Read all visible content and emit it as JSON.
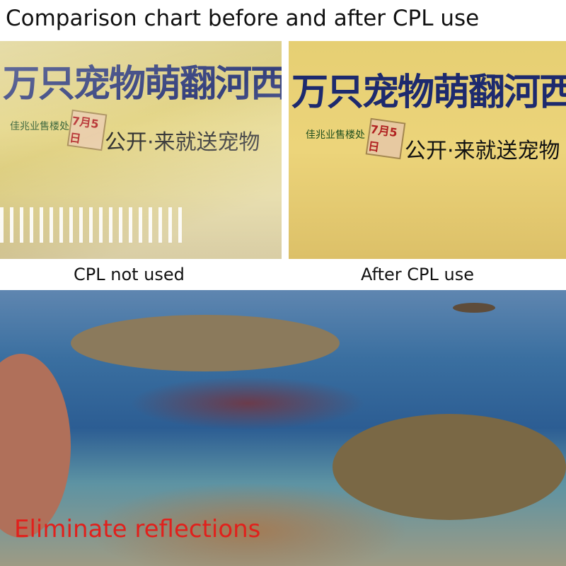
{
  "title": "Comparison chart before and after CPL use",
  "poster": {
    "headline": "万只宠物萌翻河西",
    "sales_office": "佳兆业售楼处",
    "date": "7月5日",
    "tagline": "公开·来就送宠物"
  },
  "captions": {
    "left": "CPL not used",
    "right": "After CPL use"
  },
  "overlay": {
    "text": "Eliminate reflections",
    "color": "#e1201c"
  }
}
